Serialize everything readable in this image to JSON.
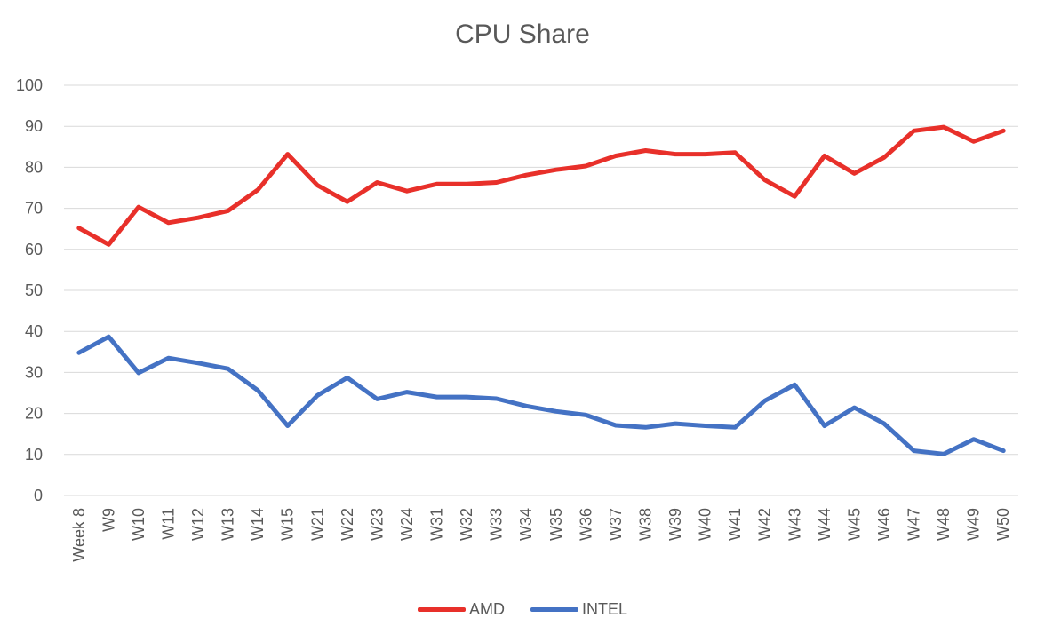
{
  "chart_data": {
    "type": "line",
    "title": "CPU Share",
    "xlabel": "",
    "ylabel": "",
    "ylim": [
      0,
      100
    ],
    "yticks": [
      0,
      10,
      20,
      30,
      40,
      50,
      60,
      70,
      80,
      90,
      100
    ],
    "grid": true,
    "legend_position": "bottom",
    "categories": [
      "Week 8",
      "W9",
      "W10",
      "W11",
      "W12",
      "W13",
      "W14",
      "W15",
      "W21",
      "W22",
      "W23",
      "W24",
      "W31",
      "W32",
      "W33",
      "W34",
      "W35",
      "W36",
      "W37",
      "W38",
      "W39",
      "W40",
      "W41",
      "W42",
      "W43",
      "W44",
      "W45",
      "W46",
      "W47",
      "W48",
      "W49",
      "W50"
    ],
    "series": [
      {
        "name": "AMD",
        "color": "#e8302a",
        "values": [
          65.2,
          61.2,
          70.3,
          66.5,
          67.7,
          69.4,
          74.5,
          83.2,
          75.6,
          71.6,
          76.3,
          74.2,
          75.9,
          75.9,
          76.3,
          78.1,
          79.4,
          80.3,
          82.8,
          84.1,
          83.2,
          83.2,
          83.6,
          76.9,
          72.9,
          82.8,
          78.5,
          82.4,
          88.9,
          89.8,
          86.3,
          88.9
        ]
      },
      {
        "name": "INTEL",
        "color": "#4472c4",
        "values": [
          34.8,
          38.7,
          29.9,
          33.5,
          32.3,
          30.9,
          25.6,
          17.0,
          24.4,
          28.7,
          23.5,
          25.2,
          24.0,
          24.0,
          23.6,
          21.8,
          20.5,
          19.6,
          17.1,
          16.6,
          17.5,
          17.0,
          16.6,
          23.1,
          27.0,
          17.0,
          21.4,
          17.5,
          10.9,
          10.1,
          13.7,
          10.9
        ]
      }
    ]
  }
}
